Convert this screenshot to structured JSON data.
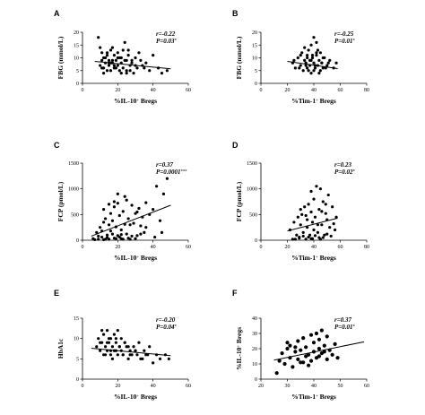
{
  "chart_data": [
    {
      "type": "scatter",
      "panel_label": "A",
      "xlabel_main": "%IL-10",
      "xlabel_sup": "+",
      "xlabel_tail": " Bregs",
      "ylabel": "FBG (mmol/L)",
      "xlim": [
        0,
        60
      ],
      "ylim": [
        0,
        20
      ],
      "xticks": [
        0,
        20,
        40,
        60
      ],
      "yticks": [
        0,
        5,
        10,
        15,
        20
      ],
      "stat_r": "r=-0.22",
      "stat_p": "P=0.03",
      "stat_p_sup": "*",
      "trendline": {
        "x": [
          7,
          50
        ],
        "y": [
          8.6,
          5.7
        ]
      },
      "points": {
        "x": [
          9,
          10,
          11,
          12,
          13,
          12,
          14,
          15,
          15,
          16,
          16,
          17,
          18,
          18,
          19,
          20,
          20,
          21,
          22,
          23,
          24,
          25,
          25,
          26,
          27,
          28,
          29,
          30,
          31,
          33,
          34,
          36,
          38,
          40,
          43,
          45,
          48,
          10,
          11,
          13,
          14,
          16,
          17,
          19,
          20,
          22,
          24,
          26,
          27,
          30,
          32,
          35,
          12,
          14,
          17,
          21,
          23,
          28,
          11,
          15,
          18,
          22,
          25
        ],
        "y": [
          18,
          14,
          9,
          10,
          8,
          6,
          12,
          9,
          7,
          13,
          5,
          8,
          11,
          6,
          9,
          12,
          7,
          10,
          8,
          6,
          16,
          9,
          5,
          11,
          7,
          8,
          4,
          10,
          6,
          9,
          7,
          8,
          5,
          11,
          6,
          4,
          5,
          7,
          12,
          10,
          5,
          8,
          14,
          6,
          10,
          4,
          9,
          13,
          5,
          7,
          12,
          6,
          4,
          11,
          9,
          5,
          13,
          9,
          6,
          8,
          7,
          10,
          4
        ]
      }
    },
    {
      "type": "scatter",
      "panel_label": "B",
      "xlabel_main": "%Tim-1",
      "xlabel_sup": "+",
      "xlabel_tail": " Bregs",
      "ylabel": "FBG (mmol/L)",
      "xlim": [
        0,
        80
      ],
      "ylim": [
        0,
        20
      ],
      "xticks": [
        0,
        20,
        40,
        60,
        80
      ],
      "yticks": [
        0,
        5,
        10,
        15,
        20
      ],
      "stat_r": "r=-0.25",
      "stat_p": "P=0.01",
      "stat_p_sup": "*",
      "trendline": {
        "x": [
          20,
          58
        ],
        "y": [
          8.6,
          5.8
        ]
      },
      "points": {
        "x": [
          24,
          26,
          28,
          30,
          31,
          32,
          33,
          34,
          35,
          35,
          36,
          37,
          38,
          38,
          39,
          40,
          40,
          41,
          42,
          42,
          43,
          44,
          45,
          45,
          46,
          47,
          48,
          50,
          52,
          55,
          57,
          25,
          29,
          33,
          36,
          39,
          41,
          43,
          44,
          47,
          49,
          51,
          30,
          34,
          37,
          40,
          42,
          46,
          38,
          35
        ],
        "y": [
          8,
          6,
          10,
          7,
          12,
          5,
          9,
          8,
          11,
          6,
          13,
          7,
          9,
          4,
          10,
          8,
          18,
          6,
          11,
          16,
          7,
          9,
          5,
          12,
          8,
          6,
          10,
          7,
          9,
          6,
          8,
          9,
          6,
          14,
          5,
          11,
          7,
          13,
          4,
          10,
          6,
          8,
          11,
          7,
          9,
          5,
          12,
          8,
          15,
          10
        ]
      }
    },
    {
      "type": "scatter",
      "panel_label": "C",
      "xlabel_main": "%IL-10",
      "xlabel_sup": "+",
      "xlabel_tail": " Bregs",
      "ylabel": "FCP (pmol/L)",
      "xlim": [
        0,
        60
      ],
      "ylim": [
        0,
        1500
      ],
      "xticks": [
        0,
        20,
        40,
        60
      ],
      "yticks": [
        0,
        500,
        1000,
        1500
      ],
      "stat_r": "r=0.37",
      "stat_p": "P=0.0001",
      "stat_p_sup": "***",
      "trendline": {
        "x": [
          5,
          50
        ],
        "y": [
          80,
          680
        ]
      },
      "points": {
        "x": [
          6,
          8,
          9,
          10,
          11,
          12,
          12,
          13,
          14,
          15,
          15,
          16,
          16,
          17,
          18,
          18,
          19,
          20,
          20,
          21,
          22,
          22,
          23,
          24,
          25,
          25,
          26,
          27,
          28,
          29,
          30,
          31,
          32,
          33,
          34,
          35,
          36,
          38,
          40,
          42,
          44,
          46,
          48,
          7,
          9,
          11,
          13,
          14,
          17,
          19,
          21,
          23,
          26,
          28,
          30,
          33,
          36,
          41,
          45,
          15,
          18,
          24,
          27,
          31,
          20,
          22,
          12
        ],
        "y": [
          30,
          150,
          20,
          250,
          60,
          350,
          10,
          420,
          100,
          300,
          20,
          520,
          180,
          380,
          40,
          650,
          260,
          720,
          90,
          480,
          200,
          30,
          560,
          310,
          780,
          120,
          420,
          20,
          680,
          330,
          520,
          90,
          620,
          280,
          450,
          150,
          730,
          500,
          600,
          1050,
          380,
          900,
          1200,
          10,
          80,
          180,
          20,
          50,
          120,
          30,
          60,
          20,
          40,
          80,
          30,
          120,
          250,
          60,
          150,
          700,
          750,
          850,
          300,
          550,
          900,
          110,
          600
        ]
      }
    },
    {
      "type": "scatter",
      "panel_label": "D",
      "xlabel_main": "%Tim-1",
      "xlabel_sup": "+",
      "xlabel_tail": " Bregs",
      "ylabel": "FCP (pmol/L)",
      "xlim": [
        0,
        80
      ],
      "ylim": [
        0,
        1500
      ],
      "xticks": [
        0,
        20,
        40,
        60,
        80
      ],
      "yticks": [
        0,
        500,
        1000,
        1500
      ],
      "stat_r": "r=0.23",
      "stat_p": "P=0.02",
      "stat_p_sup": "*",
      "trendline": {
        "x": [
          20,
          58
        ],
        "y": [
          180,
          430
        ]
      },
      "points": {
        "x": [
          22,
          24,
          25,
          27,
          28,
          29,
          30,
          31,
          32,
          33,
          34,
          35,
          35,
          36,
          37,
          38,
          38,
          39,
          40,
          40,
          41,
          42,
          43,
          44,
          44,
          45,
          46,
          47,
          48,
          49,
          50,
          51,
          52,
          54,
          55,
          57,
          26,
          29,
          32,
          36,
          39,
          41,
          45,
          47,
          50,
          53,
          56,
          30,
          34,
          38,
          43,
          46,
          49
        ],
        "y": [
          200,
          20,
          350,
          100,
          450,
          60,
          300,
          500,
          150,
          650,
          20,
          400,
          250,
          700,
          100,
          550,
          30,
          350,
          800,
          200,
          450,
          1050,
          150,
          600,
          50,
          1000,
          300,
          750,
          100,
          520,
          400,
          880,
          250,
          650,
          320,
          450,
          20,
          40,
          80,
          60,
          30,
          90,
          20,
          50,
          120,
          80,
          200,
          600,
          480,
          950,
          300,
          560,
          700
        ]
      }
    },
    {
      "type": "scatter",
      "panel_label": "E",
      "xlabel_main": "%IL-10",
      "xlabel_sup": "+",
      "xlabel_tail": " Bregs",
      "ylabel": "HbA1c",
      "xlim": [
        0,
        60
      ],
      "ylim": [
        0,
        15
      ],
      "xticks": [
        0,
        20,
        40,
        60
      ],
      "yticks": [
        0,
        5,
        10,
        15
      ],
      "stat_r": "r=-0.20",
      "stat_p": "P=0.04",
      "stat_p_sup": "*",
      "trendline": {
        "x": [
          5,
          50
        ],
        "y": [
          7.6,
          5.8
        ]
      },
      "points": {
        "x": [
          8,
          9,
          10,
          11,
          12,
          12,
          13,
          14,
          14,
          15,
          16,
          16,
          17,
          17,
          18,
          19,
          19,
          20,
          20,
          21,
          22,
          22,
          23,
          24,
          25,
          26,
          27,
          28,
          29,
          30,
          31,
          32,
          33,
          35,
          36,
          38,
          40,
          42,
          44,
          47,
          49,
          10,
          13,
          15,
          18,
          21,
          24,
          27,
          30,
          34,
          37,
          11,
          14,
          16,
          19,
          23,
          26
        ],
        "y": [
          8,
          10,
          7,
          9,
          11,
          6,
          8,
          12,
          7,
          9,
          6,
          10,
          8,
          5,
          11,
          7,
          9,
          6,
          12,
          8,
          7,
          10,
          6,
          9,
          8,
          5,
          7,
          6,
          8,
          7,
          6,
          9,
          5,
          7,
          6,
          8,
          4,
          6,
          5,
          6,
          5,
          9,
          6,
          10,
          7,
          8,
          9,
          6,
          7,
          5,
          6,
          12,
          9,
          7,
          10,
          6,
          8
        ]
      }
    },
    {
      "type": "scatter",
      "panel_label": "F",
      "xlabel_main": "%Tim-1",
      "xlabel_sup": "+",
      "xlabel_tail": " Bregs",
      "ylabel": "%IL-10",
      "ylabel_sup": "+",
      "ylabel_tail": " Bregs",
      "xlim": [
        20,
        60
      ],
      "ylim": [
        0,
        40
      ],
      "xticks": [
        20,
        30,
        40,
        50,
        60
      ],
      "yticks": [
        0,
        10,
        20,
        30,
        40
      ],
      "stat_r": "r=0.37",
      "stat_p": "P=0.01",
      "stat_p_sup": "*",
      "trendline": {
        "x": [
          25,
          59
        ],
        "y": [
          12.5,
          24.5
        ]
      },
      "points": {
        "x": [
          26,
          27,
          28,
          29,
          30,
          31,
          31,
          32,
          33,
          34,
          34,
          35,
          35,
          36,
          37,
          37,
          38,
          38,
          39,
          40,
          40,
          41,
          41,
          42,
          42,
          43,
          43,
          44,
          45,
          45,
          46,
          47,
          48,
          49,
          30,
          33,
          36,
          39,
          42,
          44
        ],
        "y": [
          4,
          12,
          17,
          10,
          20,
          14,
          22,
          8,
          18,
          13,
          25,
          11,
          19,
          27,
          15,
          21,
          9,
          16,
          12,
          24,
          18,
          30,
          14,
          20,
          26,
          17,
          32,
          22,
          13,
          28,
          19,
          16,
          23,
          14,
          24,
          21,
          11,
          29,
          15,
          18
        ]
      }
    }
  ]
}
